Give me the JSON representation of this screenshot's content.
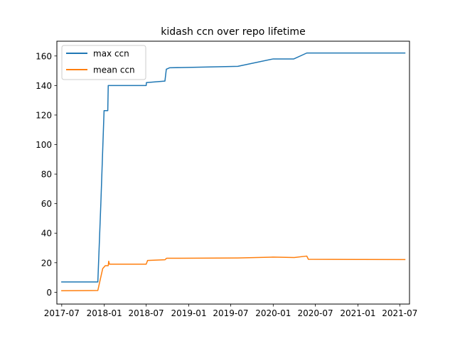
{
  "chart_data": {
    "type": "line",
    "title": "kidash ccn over repo lifetime",
    "xlabel": "",
    "ylabel": "",
    "x_axis_type": "date",
    "xlim": [
      "2017-06-10",
      "2021-08-12"
    ],
    "ylim": [
      -8,
      170
    ],
    "x_ticks": [
      "2017-07",
      "2018-01",
      "2018-07",
      "2019-01",
      "2019-07",
      "2020-01",
      "2020-07",
      "2021-01",
      "2021-07"
    ],
    "y_ticks": [
      0,
      20,
      40,
      60,
      80,
      100,
      120,
      140,
      160
    ],
    "grid": false,
    "legend": {
      "position": "top-left",
      "entries": [
        "max ccn",
        "mean ccn"
      ]
    },
    "series": [
      {
        "name": "max ccn",
        "color": "#1f77b4",
        "points": [
          [
            "2017-07-01",
            7
          ],
          [
            "2017-12-04",
            7
          ],
          [
            "2017-12-17",
            60
          ],
          [
            "2017-12-31",
            123
          ],
          [
            "2018-01-16",
            123
          ],
          [
            "2018-01-18",
            140
          ],
          [
            "2018-07-01",
            140
          ],
          [
            "2018-07-02",
            142
          ],
          [
            "2018-09-20",
            143
          ],
          [
            "2018-09-26",
            151
          ],
          [
            "2018-10-10",
            152
          ],
          [
            "2019-08-01",
            153
          ],
          [
            "2020-01-01",
            158
          ],
          [
            "2020-03-30",
            158
          ],
          [
            "2020-05-25",
            162
          ],
          [
            "2021-07-23",
            162
          ]
        ]
      },
      {
        "name": "mean ccn",
        "color": "#ff7f0e",
        "points": [
          [
            "2017-07-01",
            1
          ],
          [
            "2017-12-04",
            1.2
          ],
          [
            "2017-12-25",
            16
          ],
          [
            "2018-01-05",
            18
          ],
          [
            "2018-01-18",
            18
          ],
          [
            "2018-01-20",
            21
          ],
          [
            "2018-01-23",
            19
          ],
          [
            "2018-07-01",
            19
          ],
          [
            "2018-07-07",
            21.5
          ],
          [
            "2018-09-20",
            22
          ],
          [
            "2018-09-27",
            23
          ],
          [
            "2019-08-01",
            23.2
          ],
          [
            "2019-12-31",
            23.8
          ],
          [
            "2020-04-01",
            23.5
          ],
          [
            "2020-05-25",
            24.5
          ],
          [
            "2020-06-01",
            22.3
          ],
          [
            "2021-01-01",
            22.2
          ],
          [
            "2021-07-23",
            22.1
          ]
        ]
      }
    ]
  }
}
